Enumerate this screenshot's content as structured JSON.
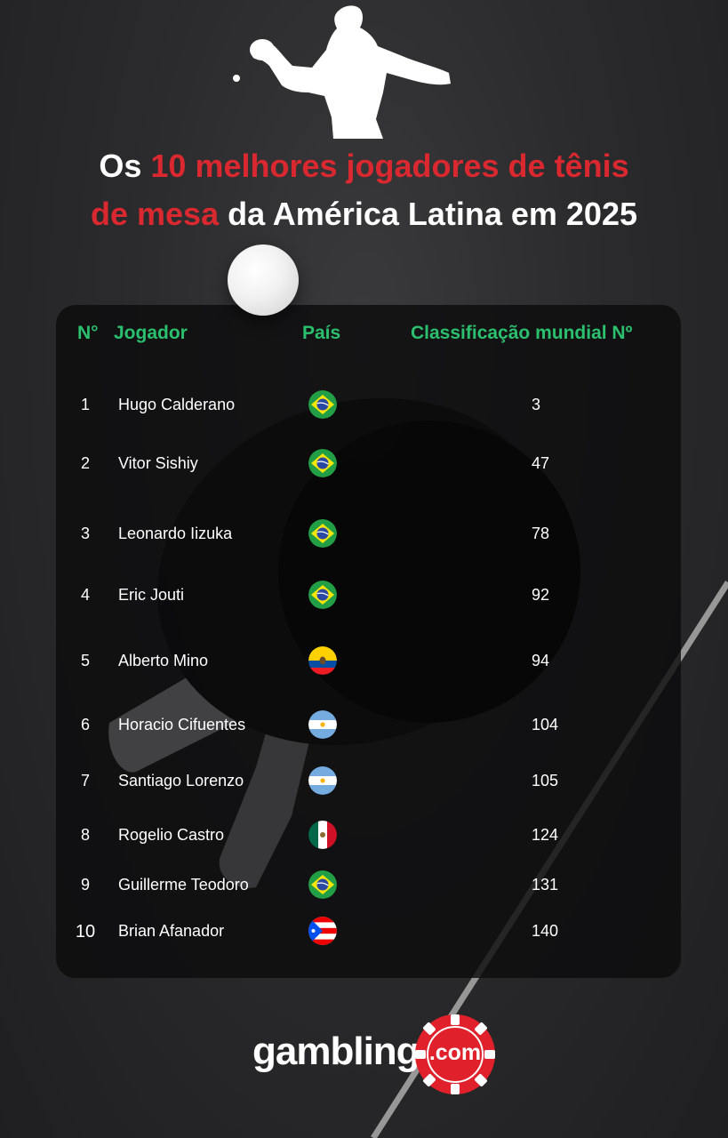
{
  "title": {
    "part1": "Os ",
    "part2": "10 melhores jogadores de tênis",
    "part3": "de mesa",
    "part4": " da América Latina em 2025"
  },
  "table": {
    "headers": {
      "num": "N°",
      "player": "Jogador",
      "country": "País",
      "rank": "Classificação mundial Nº"
    },
    "rows": [
      {
        "num": "1",
        "name": "Hugo Calderano",
        "flag": "brazil-flag-icon",
        "rank": "3"
      },
      {
        "num": "2",
        "name": "Vitor Sishiy",
        "flag": "brazil-flag-icon",
        "rank": "47"
      },
      {
        "num": "3",
        "name": "Leonardo Iizuka",
        "flag": "brazil-flag-icon",
        "rank": "78"
      },
      {
        "num": "4",
        "name": "Eric Jouti",
        "flag": "brazil-flag-icon",
        "rank": "92"
      },
      {
        "num": "5",
        "name": "Alberto Mino",
        "flag": "ecuador-flag-icon",
        "rank": "94"
      },
      {
        "num": "6",
        "name": "Horacio Cifuentes",
        "flag": "argentina-flag-icon",
        "rank": "104"
      },
      {
        "num": "7",
        "name": "Santiago Lorenzo",
        "flag": "argentina-flag-icon",
        "rank": "105"
      },
      {
        "num": "8",
        "name": "Rogelio Castro",
        "flag": "mexico-flag-icon",
        "rank": "124"
      },
      {
        "num": "9",
        "name": "Guillerme Teodoro",
        "flag": "brazil-flag-icon",
        "rank": "131"
      },
      {
        "num": "10",
        "name": "Brian Afanador",
        "flag": "puerto-rico-flag-icon",
        "rank": "140"
      }
    ]
  },
  "logo": {
    "word": "gambling",
    "suffix": ".com"
  },
  "colors": {
    "accent_red": "#d9282f",
    "header_green": "#2bc06d",
    "background": "#2b2b2d"
  }
}
